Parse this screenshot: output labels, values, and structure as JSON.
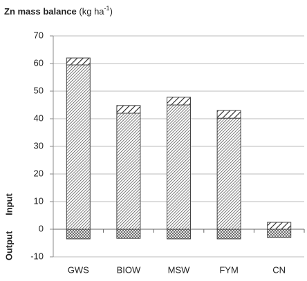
{
  "chart_data": {
    "type": "stacked_bar",
    "title": [
      "Zn mass balance",
      "(kg ha",
      "-1",
      ")"
    ],
    "y_labels": [
      "Input",
      "Output"
    ],
    "categories": [
      "GWS",
      "BIOW",
      "MSW",
      "FYM",
      "CN"
    ],
    "series": [
      {
        "color": "#444444",
        "hatch": "dense",
        "values": [
          59.5,
          42,
          45,
          40.2,
          0
        ]
      },
      {
        "color": "#444444",
        "hatch": "wide",
        "values": [
          2.5,
          2.8,
          2.8,
          2.8,
          2.5
        ]
      },
      {
        "color": "#444444",
        "hatch": "cross",
        "values": [
          -3.5,
          -3.3,
          -3.5,
          -3.5,
          -3
        ]
      }
    ],
    "ylim": [
      -10,
      70
    ],
    "yticks": [
      -10,
      0,
      10,
      20,
      30,
      40,
      50,
      60,
      70
    ],
    "grid": true
  }
}
